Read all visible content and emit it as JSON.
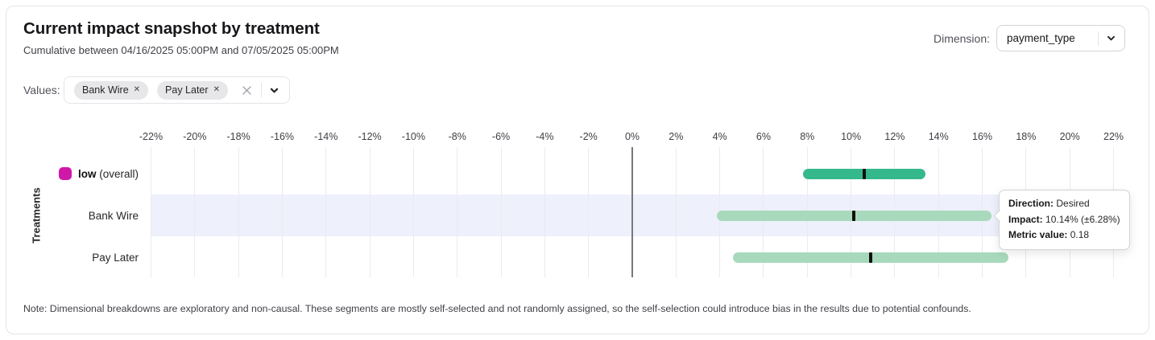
{
  "header": {
    "title": "Current impact snapshot by treatment",
    "subtitle": "Cumulative between 04/16/2025 05:00PM and 07/05/2025 05:00PM",
    "dimension_label": "Dimension:",
    "dimension_value": "payment_type"
  },
  "filters": {
    "values_label": "Values:",
    "chips": [
      "Bank Wire",
      "Pay Later"
    ]
  },
  "chart_data": {
    "type": "range_bar",
    "orientation": "horizontal",
    "title": "Current impact snapshot by treatment",
    "ylabel": "Treatments",
    "xlabel": "",
    "x_tick_values": [
      -22,
      -20,
      -18,
      -16,
      -14,
      -12,
      -10,
      -8,
      -6,
      -4,
      -2,
      0,
      2,
      4,
      6,
      8,
      10,
      12,
      14,
      16,
      18,
      20,
      22
    ],
    "x_tick_labels": [
      "-22%",
      "-20%",
      "-18%",
      "-16%",
      "-14%",
      "-12%",
      "-10%",
      "-8%",
      "-6%",
      "-4%",
      "-2%",
      "0%",
      "2%",
      "4%",
      "6%",
      "8%",
      "10%",
      "12%",
      "14%",
      "16%",
      "18%",
      "20%",
      "22%"
    ],
    "xlim": [
      -22.3,
      22.3
    ],
    "grid": true,
    "zero_line_at": 0,
    "marker_color": "#111111",
    "highlight_band_color": "#eef0fb",
    "rows": [
      {
        "label": "low",
        "label_bold": true,
        "label_suffix": "(overall)",
        "legend_color": "#cf18a8",
        "bar_color": "#35b98c",
        "impact_pct": 10.6,
        "ci_pct": 2.8,
        "highlighted": false
      },
      {
        "label": "Bank Wire",
        "bar_color": "#a8d9bc",
        "impact_pct": 10.14,
        "ci_pct": 6.28,
        "direction": "Desired",
        "metric_value": 0.18,
        "highlighted": true
      },
      {
        "label": "Pay Later",
        "bar_color": "#a8d9bc",
        "impact_pct": 10.9,
        "ci_pct": 6.3,
        "highlighted": false
      }
    ]
  },
  "tooltip": {
    "anchor_row": "Bank Wire",
    "rows": [
      {
        "label": "Direction:",
        "value": "Desired"
      },
      {
        "label": "Impact:",
        "value": "10.14% (±6.28%)"
      },
      {
        "label": "Metric value:",
        "value": "0.18"
      }
    ]
  },
  "note": "Note: Dimensional breakdowns are exploratory and non-causal. These segments are mostly self-selected and not randomly assigned, so the self-selection could introduce bias in the results due to potential confounds."
}
